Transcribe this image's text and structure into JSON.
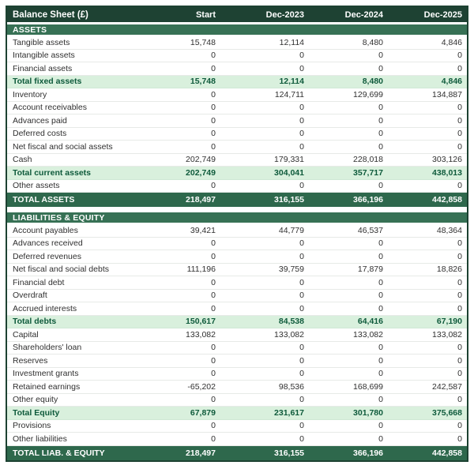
{
  "title": "Balance Sheet (£)",
  "columns": [
    "Start",
    "Dec-2023",
    "Dec-2024",
    "Dec-2025"
  ],
  "colors": {
    "header_bg": "#1e4233",
    "section_band_bg": "#377155",
    "grand_total_bg": "#2e684c",
    "subtotal_bg": "#d9f0dd",
    "subtotal_text": "#0e5a3b",
    "body_text": "#303030"
  },
  "sections": [
    {
      "label": "ASSETS",
      "rows": [
        {
          "label": "Tangible assets",
          "type": "normal",
          "values": [
            "15,748",
            "12,114",
            "8,480",
            "4,846"
          ]
        },
        {
          "label": "Intangible assets",
          "type": "normal",
          "values": [
            "0",
            "0",
            "0",
            "0"
          ]
        },
        {
          "label": "Financial assets",
          "type": "normal",
          "values": [
            "0",
            "0",
            "0",
            "0"
          ]
        },
        {
          "label": "Total fixed assets",
          "type": "subtotal",
          "values": [
            "15,748",
            "12,114",
            "8,480",
            "4,846"
          ]
        },
        {
          "label": "Inventory",
          "type": "normal",
          "values": [
            "0",
            "124,711",
            "129,699",
            "134,887"
          ]
        },
        {
          "label": "Account receivables",
          "type": "normal",
          "values": [
            "0",
            "0",
            "0",
            "0"
          ]
        },
        {
          "label": "Advances paid",
          "type": "normal",
          "values": [
            "0",
            "0",
            "0",
            "0"
          ]
        },
        {
          "label": "Deferred costs",
          "type": "normal",
          "values": [
            "0",
            "0",
            "0",
            "0"
          ]
        },
        {
          "label": "Net fiscal and social assets",
          "type": "normal",
          "values": [
            "0",
            "0",
            "0",
            "0"
          ]
        },
        {
          "label": "Cash",
          "type": "normal",
          "values": [
            "202,749",
            "179,331",
            "228,018",
            "303,126"
          ]
        },
        {
          "label": "Total current assets",
          "type": "subtotal",
          "values": [
            "202,749",
            "304,041",
            "357,717",
            "438,013"
          ]
        },
        {
          "label": "Other assets",
          "type": "normal",
          "values": [
            "0",
            "0",
            "0",
            "0"
          ]
        },
        {
          "label": "TOTAL ASSETS",
          "type": "grand",
          "values": [
            "218,497",
            "316,155",
            "366,196",
            "442,858"
          ]
        }
      ]
    },
    {
      "label": "LIABILITIES & EQUITY",
      "rows": [
        {
          "label": "Account payables",
          "type": "normal",
          "values": [
            "39,421",
            "44,779",
            "46,537",
            "48,364"
          ]
        },
        {
          "label": "Advances received",
          "type": "normal",
          "values": [
            "0",
            "0",
            "0",
            "0"
          ]
        },
        {
          "label": "Deferred revenues",
          "type": "normal",
          "values": [
            "0",
            "0",
            "0",
            "0"
          ]
        },
        {
          "label": "Net fiscal and social debts",
          "type": "normal",
          "values": [
            "111,196",
            "39,759",
            "17,879",
            "18,826"
          ]
        },
        {
          "label": "Financial debt",
          "type": "normal",
          "values": [
            "0",
            "0",
            "0",
            "0"
          ]
        },
        {
          "label": "Overdraft",
          "type": "normal",
          "values": [
            "0",
            "0",
            "0",
            "0"
          ]
        },
        {
          "label": "Accrued interests",
          "type": "normal",
          "values": [
            "0",
            "0",
            "0",
            "0"
          ]
        },
        {
          "label": "Total debts",
          "type": "subtotal",
          "values": [
            "150,617",
            "84,538",
            "64,416",
            "67,190"
          ]
        },
        {
          "label": "Capital",
          "type": "normal",
          "values": [
            "133,082",
            "133,082",
            "133,082",
            "133,082"
          ]
        },
        {
          "label": "Shareholders' loan",
          "type": "normal",
          "values": [
            "0",
            "0",
            "0",
            "0"
          ]
        },
        {
          "label": "Reserves",
          "type": "normal",
          "values": [
            "0",
            "0",
            "0",
            "0"
          ]
        },
        {
          "label": "Investment grants",
          "type": "normal",
          "values": [
            "0",
            "0",
            "0",
            "0"
          ]
        },
        {
          "label": "Retained earnings",
          "type": "normal",
          "values": [
            "-65,202",
            "98,536",
            "168,699",
            "242,587"
          ]
        },
        {
          "label": "Other equity",
          "type": "normal",
          "values": [
            "0",
            "0",
            "0",
            "0"
          ]
        },
        {
          "label": "Total Equity",
          "type": "subtotal",
          "values": [
            "67,879",
            "231,617",
            "301,780",
            "375,668"
          ]
        },
        {
          "label": "Provisions",
          "type": "normal",
          "values": [
            "0",
            "0",
            "0",
            "0"
          ]
        },
        {
          "label": "Other liabilities",
          "type": "normal",
          "values": [
            "0",
            "0",
            "0",
            "0"
          ]
        },
        {
          "label": "TOTAL LIAB. & EQUITY",
          "type": "grand",
          "values": [
            "218,497",
            "316,155",
            "366,196",
            "442,858"
          ]
        }
      ]
    }
  ]
}
